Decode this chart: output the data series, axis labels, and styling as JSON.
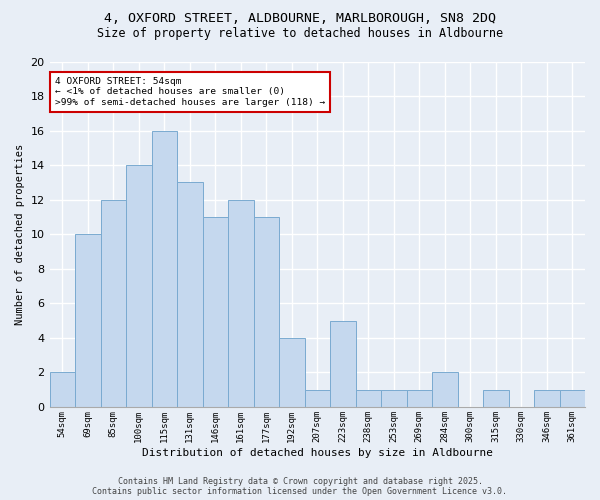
{
  "title_line1": "4, OXFORD STREET, ALDBOURNE, MARLBOROUGH, SN8 2DQ",
  "title_line2": "Size of property relative to detached houses in Aldbourne",
  "xlabel": "Distribution of detached houses by size in Aldbourne",
  "ylabel": "Number of detached properties",
  "bar_labels": [
    "54sqm",
    "69sqm",
    "85sqm",
    "100sqm",
    "115sqm",
    "131sqm",
    "146sqm",
    "161sqm",
    "177sqm",
    "192sqm",
    "207sqm",
    "223sqm",
    "238sqm",
    "253sqm",
    "269sqm",
    "284sqm",
    "300sqm",
    "315sqm",
    "330sqm",
    "346sqm",
    "361sqm"
  ],
  "bar_values": [
    2,
    10,
    12,
    14,
    16,
    13,
    11,
    12,
    11,
    4,
    1,
    5,
    1,
    1,
    1,
    2,
    0,
    1,
    0,
    1,
    1
  ],
  "bar_color": "#c5d8ee",
  "bar_edgecolor": "#7aaad0",
  "background_color": "#e8eef6",
  "grid_color": "#ffffff",
  "ylim": [
    0,
    20
  ],
  "yticks": [
    0,
    2,
    4,
    6,
    8,
    10,
    12,
    14,
    16,
    18,
    20
  ],
  "annotation_title": "4 OXFORD STREET: 54sqm",
  "annotation_line2": "← <1% of detached houses are smaller (0)",
  "annotation_line3": ">99% of semi-detached houses are larger (118) →",
  "annotation_box_facecolor": "#ffffff",
  "annotation_box_edgecolor": "#cc0000",
  "footer_line1": "Contains HM Land Registry data © Crown copyright and database right 2025.",
  "footer_line2": "Contains public sector information licensed under the Open Government Licence v3.0."
}
